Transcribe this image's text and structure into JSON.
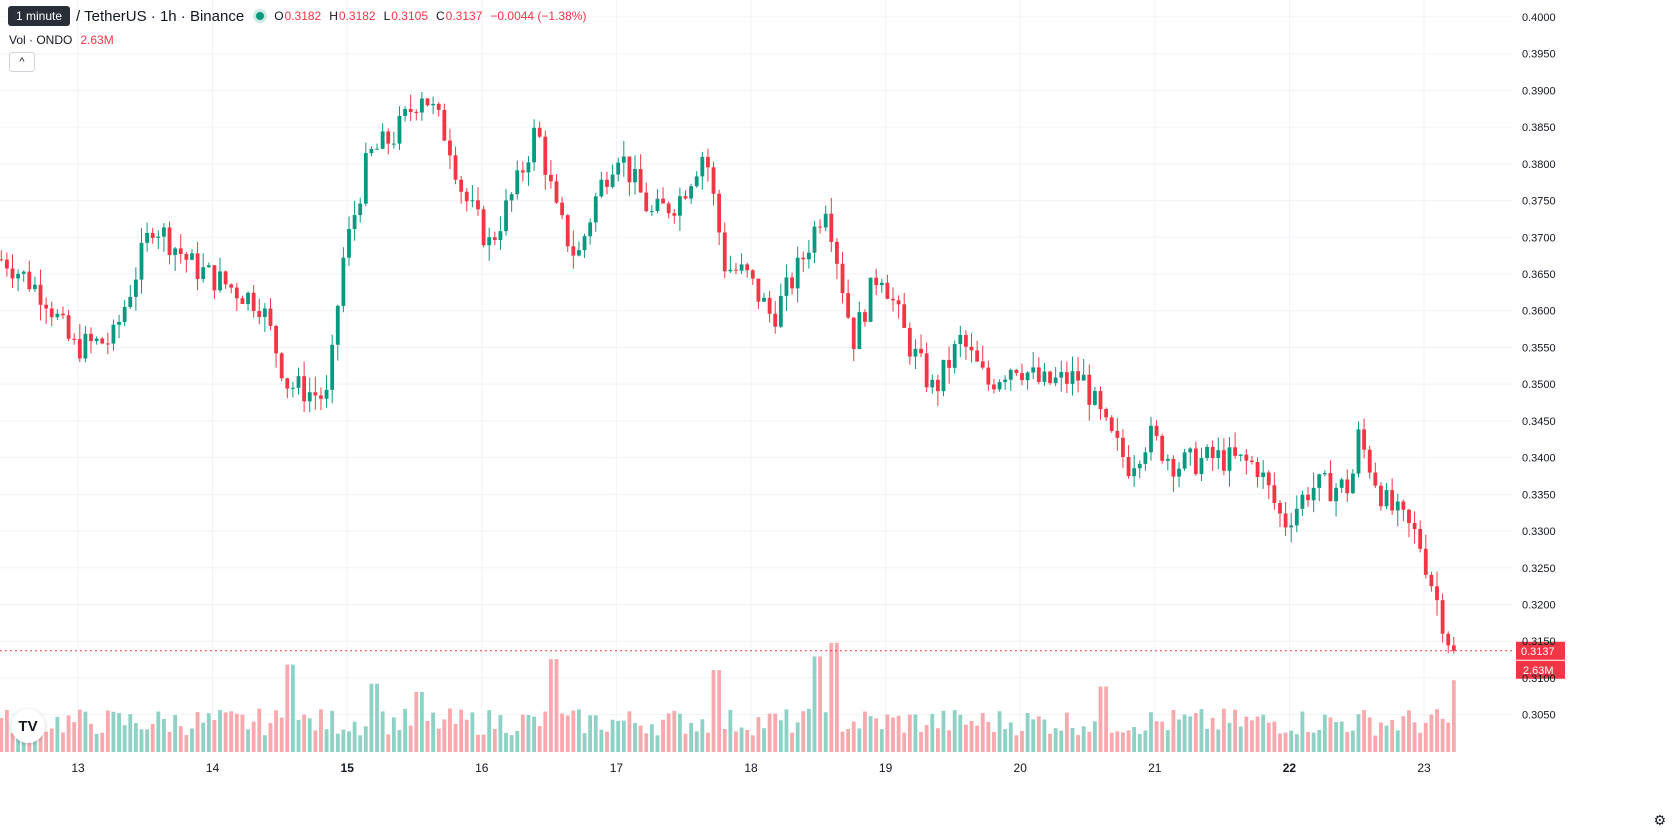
{
  "header": {
    "tooltip": "1 minute",
    "symbol": "/ TetherUS · 1h · Binance",
    "o_label": "O",
    "o_value": "0.3182",
    "h_label": "H",
    "h_value": "0.3182",
    "l_label": "L",
    "l_value": "0.3105",
    "c_label": "C",
    "c_value": "0.3137",
    "change": "−0.0044 (−1.38%)"
  },
  "volume_legend": {
    "label": "Vol · ONDO",
    "value": "2.63M"
  },
  "icons": {
    "collapse": "chevron-up-icon",
    "logo": "tradingview-logo",
    "settings": "gear-icon"
  },
  "labels": {
    "collapse": "^",
    "logo": "TV",
    "gear": "⚙"
  },
  "colors": {
    "up": "#089981",
    "down": "#f23645",
    "up_volume": "#8fd1c4",
    "down_volume": "#f7a9ae",
    "grid": "#f0f3fa"
  },
  "chart_data": {
    "type": "candlestick",
    "y_axis": {
      "range": [
        0.3025,
        0.4
      ],
      "ticks": [
        "0.4000",
        "0.3950",
        "0.3900",
        "0.3850",
        "0.3800",
        "0.3750",
        "0.3700",
        "0.3650",
        "0.3600",
        "0.3550",
        "0.3500",
        "0.3450",
        "0.3400",
        "0.3350",
        "0.3300",
        "0.3250",
        "0.3200",
        "0.3150",
        "0.3100",
        "0.3050"
      ]
    },
    "x_axis": {
      "ticks": [
        "13",
        "14",
        "15",
        "16",
        "17",
        "18",
        "19",
        "20",
        "21",
        "22",
        "23"
      ],
      "bold": [
        "15",
        "22"
      ]
    },
    "last_price_label": "0.3137",
    "last_volume_label": "2.63M",
    "anchors": [
      {
        "day": 12.5,
        "price": 0.367
      },
      {
        "day": 12.8,
        "price": 0.362
      },
      {
        "day": 13.0,
        "price": 0.355
      },
      {
        "day": 13.3,
        "price": 0.356
      },
      {
        "day": 13.6,
        "price": 0.372
      },
      {
        "day": 13.9,
        "price": 0.366
      },
      {
        "day": 14.1,
        "price": 0.364
      },
      {
        "day": 14.4,
        "price": 0.361
      },
      {
        "day": 14.6,
        "price": 0.35
      },
      {
        "day": 14.9,
        "price": 0.348
      },
      {
        "day": 15.0,
        "price": 0.366
      },
      {
        "day": 15.2,
        "price": 0.381
      },
      {
        "day": 15.4,
        "price": 0.384
      },
      {
        "day": 15.6,
        "price": 0.39
      },
      {
        "day": 15.8,
        "price": 0.383
      },
      {
        "day": 15.9,
        "price": 0.376
      },
      {
        "day": 16.1,
        "price": 0.369
      },
      {
        "day": 16.3,
        "price": 0.377
      },
      {
        "day": 16.45,
        "price": 0.385
      },
      {
        "day": 16.6,
        "price": 0.373
      },
      {
        "day": 16.75,
        "price": 0.367
      },
      {
        "day": 16.9,
        "price": 0.376
      },
      {
        "day": 17.05,
        "price": 0.382
      },
      {
        "day": 17.3,
        "price": 0.373
      },
      {
        "day": 17.5,
        "price": 0.375
      },
      {
        "day": 17.7,
        "price": 0.382
      },
      {
        "day": 17.85,
        "price": 0.366
      },
      {
        "day": 18.0,
        "price": 0.365
      },
      {
        "day": 18.2,
        "price": 0.359
      },
      {
        "day": 18.4,
        "price": 0.366
      },
      {
        "day": 18.6,
        "price": 0.375
      },
      {
        "day": 18.8,
        "price": 0.356
      },
      {
        "day": 19.0,
        "price": 0.366
      },
      {
        "day": 19.2,
        "price": 0.356
      },
      {
        "day": 19.4,
        "price": 0.349
      },
      {
        "day": 19.6,
        "price": 0.356
      },
      {
        "day": 19.8,
        "price": 0.35
      },
      {
        "day": 20.0,
        "price": 0.353
      },
      {
        "day": 20.2,
        "price": 0.35
      },
      {
        "day": 20.5,
        "price": 0.351
      },
      {
        "day": 20.7,
        "price": 0.343
      },
      {
        "day": 20.85,
        "price": 0.339
      },
      {
        "day": 21.0,
        "price": 0.343
      },
      {
        "day": 21.2,
        "price": 0.339
      },
      {
        "day": 21.5,
        "price": 0.34
      },
      {
        "day": 21.8,
        "price": 0.339
      },
      {
        "day": 22.0,
        "price": 0.331
      },
      {
        "day": 22.2,
        "price": 0.336
      },
      {
        "day": 22.5,
        "price": 0.336
      },
      {
        "day": 22.55,
        "price": 0.343
      },
      {
        "day": 22.75,
        "price": 0.334
      },
      {
        "day": 23.0,
        "price": 0.329
      },
      {
        "day": 23.25,
        "price": 0.3137
      }
    ],
    "volume_spikes": [
      {
        "day": 14.58,
        "volume": 3.2
      },
      {
        "day": 16.55,
        "volume": 3.4
      },
      {
        "day": 17.75,
        "volume": 3.0
      },
      {
        "day": 18.6,
        "volume": 4.0
      },
      {
        "day": 18.5,
        "volume": 3.5
      },
      {
        "day": 20.6,
        "volume": 2.4
      },
      {
        "day": 15.2,
        "volume": 2.5
      },
      {
        "day": 15.55,
        "volume": 2.2
      },
      {
        "day": 23.25,
        "volume": 2.63
      }
    ]
  }
}
